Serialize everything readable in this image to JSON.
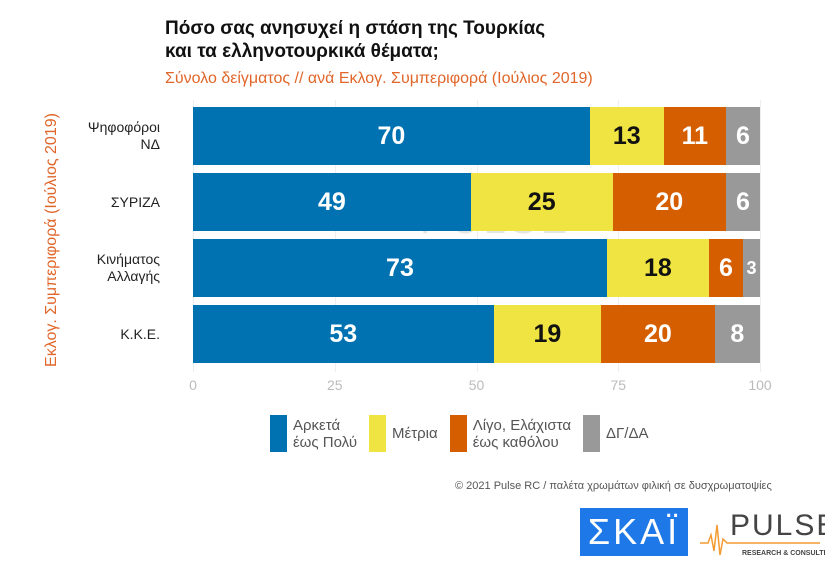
{
  "title_line1": "Πόσο σας ανησυχεί η στάση της Τουρκίας",
  "title_line2": "και τα ελληνοτουρκικά θέματα;",
  "subtitle": "Σύνολο δείγματος // ανά Εκλογ. Συμπεριφορά (Ιούλιος 2019)",
  "footer": "© 2021 Pulse RC   /   παλέτα χρωμάτων φιλική σε δυσχρωματοψίες",
  "logos": {
    "skai": "ΣΚΑΪ",
    "pulse": "PULSE",
    "pulse_sub": "RESEARCH & CONSULTING"
  },
  "chart_data": {
    "type": "bar",
    "orientation": "horizontal",
    "stacked": true,
    "title": "Πόσο σας ανησυχεί η στάση της Τουρκίας και τα ελληνοτουρκικά θέματα;",
    "ylabel": "Εκλογ. Συμπεριφορά (Ιούλιος 2019)",
    "xlim": [
      0,
      100
    ],
    "xticks": [
      "0",
      "25",
      "50",
      "75",
      "100"
    ],
    "grid": true,
    "legend_placement": "bottom",
    "categories": [
      [
        "Ψηφοφόροι",
        "ΝΔ"
      ],
      [
        "ΣΥΡΙΖΑ"
      ],
      [
        "Κινήματος",
        "Αλλαγής"
      ],
      [
        "Κ.Κ.Ε."
      ]
    ],
    "series": [
      {
        "name": [
          "Αρκετά",
          "έως Πολύ"
        ],
        "color": "#0072B2",
        "text_color": "#ffffff",
        "values": [
          70,
          49,
          73,
          53
        ]
      },
      {
        "name": [
          "Μέτρια"
        ],
        "color": "#F0E442",
        "text_color": "#111111",
        "values": [
          13,
          25,
          18,
          19
        ]
      },
      {
        "name": [
          "Λίγο, Ελάχιστα",
          "έως καθόλου"
        ],
        "color": "#D55E00",
        "text_color": "#ffffff",
        "values": [
          11,
          20,
          6,
          20
        ]
      },
      {
        "name": [
          "ΔΓ/ΔΑ"
        ],
        "color": "#999999",
        "text_color": "#ffffff",
        "values": [
          6,
          6,
          3,
          8
        ]
      }
    ]
  }
}
